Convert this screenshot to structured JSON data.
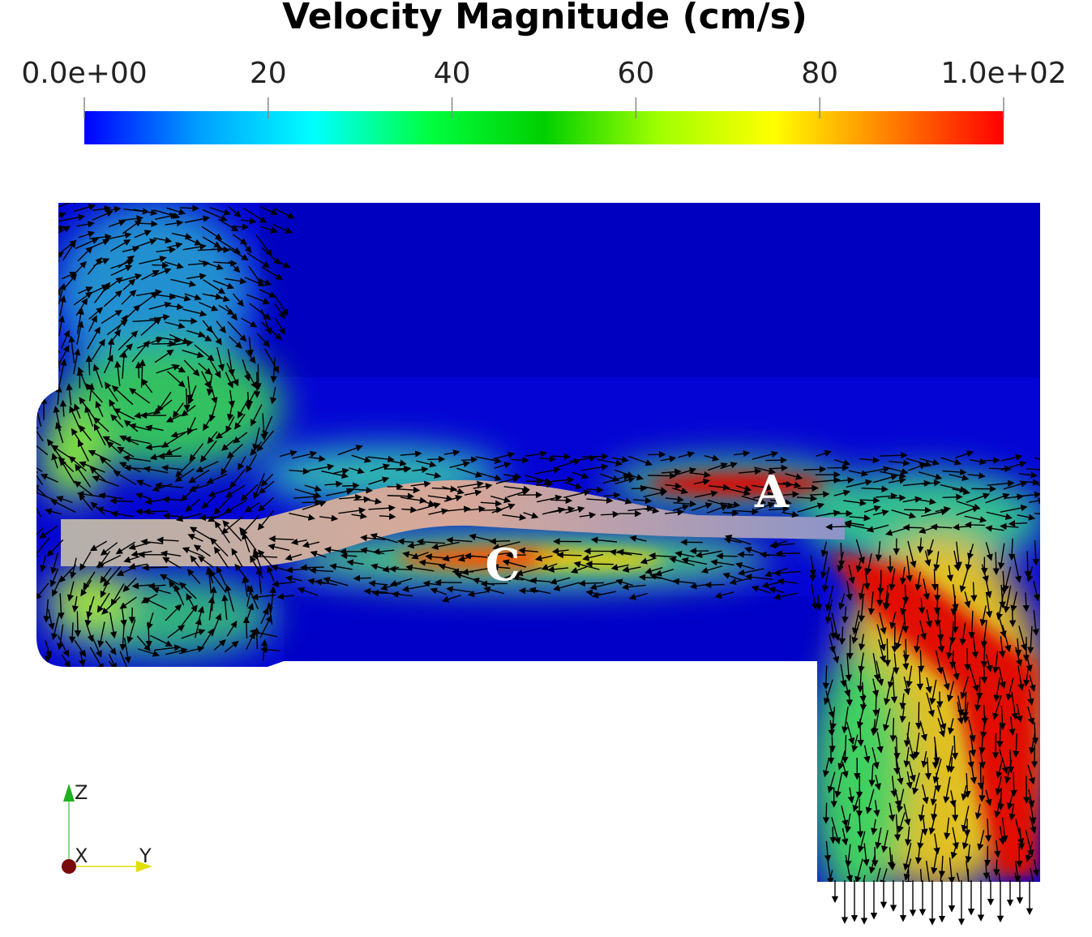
{
  "chart_data": {
    "type": "colormap",
    "title": "Velocity Magnitude (cm/s)",
    "clim": [
      0,
      100
    ],
    "cticks": [
      {
        "value": 0,
        "label": "0.0e+00"
      },
      20,
      40,
      60,
      80,
      {
        "value": 100,
        "label": "1.0e+02"
      }
    ],
    "colormap": [
      "#0000ff",
      "#00a0ff",
      "#00ffff",
      "#00ff40",
      "#00d000",
      "#a0ff00",
      "#ffff00",
      "#ff8000",
      "#ff0000"
    ],
    "annotations": [
      "A",
      "C"
    ],
    "axis_labels": [
      "Z",
      "X",
      "Y"
    ]
  }
}
